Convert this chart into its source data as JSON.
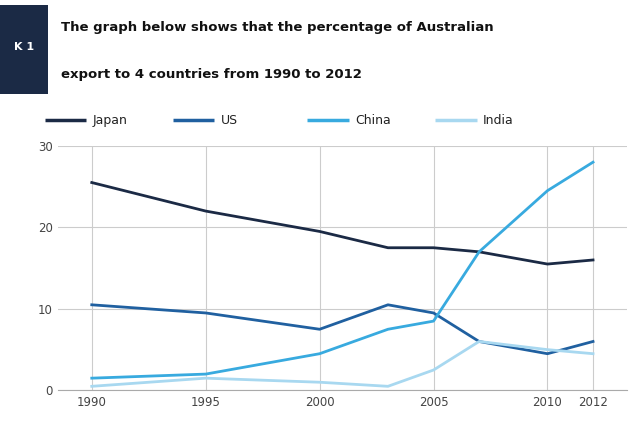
{
  "title_line1": "The graph below shows that the percentage of Australian",
  "title_line2": "export to 4 countries from 1990 to 2012",
  "label_tag": "K 1",
  "years": [
    1990,
    1995,
    2000,
    2003,
    2005,
    2007,
    2010,
    2012
  ],
  "Japan": [
    25.5,
    22,
    19.5,
    17.5,
    17.5,
    17,
    15.5,
    16
  ],
  "US": [
    10.5,
    9.5,
    7.5,
    10.5,
    9.5,
    6,
    4.5,
    6
  ],
  "China": [
    1.5,
    2,
    4.5,
    7.5,
    8.5,
    17,
    24.5,
    28
  ],
  "India": [
    0.5,
    1.5,
    1,
    0.5,
    2.5,
    6,
    5,
    4.5
  ],
  "Japan_color": "#1b2a45",
  "US_color": "#2060a0",
  "China_color": "#38aadf",
  "India_color": "#a8d8f0",
  "xlim": [
    1988.5,
    2013.5
  ],
  "ylim": [
    0,
    30
  ],
  "yticks": [
    0,
    10,
    20,
    30
  ],
  "xticks": [
    1990,
    1995,
    2000,
    2005,
    2010,
    2012
  ],
  "bg_color": "#ffffff",
  "grid_color": "#cccccc",
  "header_bg": "#1b2a45",
  "header_text_color": "#ffffff"
}
